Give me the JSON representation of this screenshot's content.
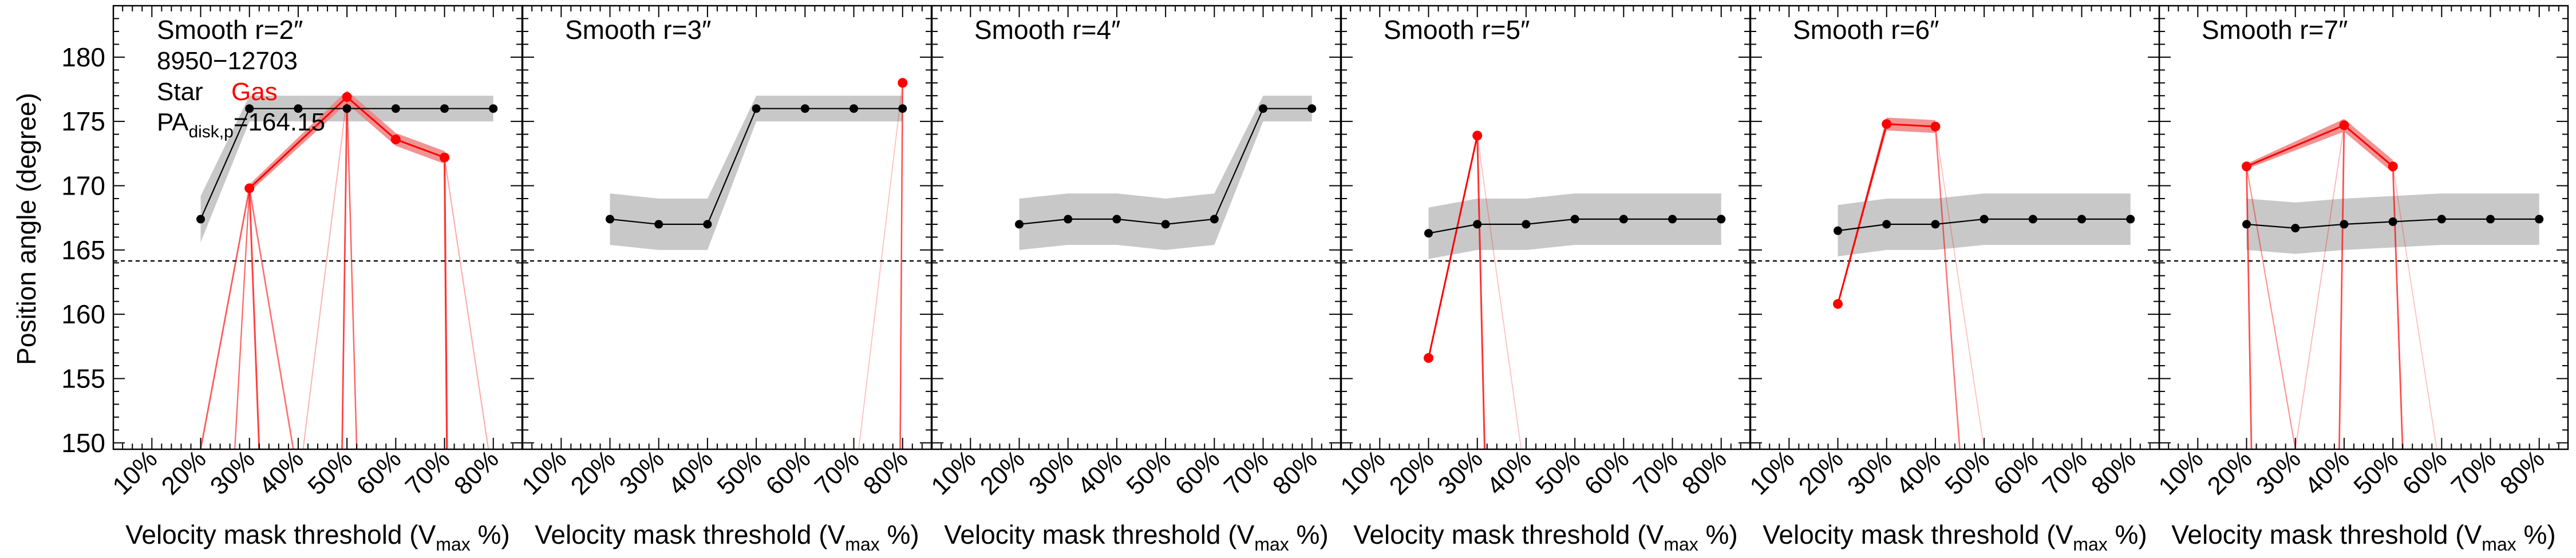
{
  "figure": {
    "ylabel": "Position angle (degree)",
    "xlabel_main": "Velocity mask threshold (V",
    "xlabel_sub": "max",
    "xlabel_tail": " %)",
    "colors": {
      "star": "#000000",
      "gas": "#ff0000",
      "star_band": "#c8c8c8",
      "gas_band": "#f08080"
    }
  },
  "annotations": {
    "id": "8950−12703",
    "star": "Star",
    "gas": "Gas",
    "pa_main": "PA",
    "pa_sub": "disk,p",
    "pa_value": "=164.15"
  },
  "chart_data": [
    {
      "type": "line",
      "title": "Smooth r=2″",
      "categories": [
        "10%",
        "20%",
        "30%",
        "40%",
        "50%",
        "60%",
        "70%",
        "80%"
      ],
      "ylim": [
        149.5,
        184.0
      ],
      "reference_line": 164.15,
      "series": [
        {
          "name": "Star",
          "x": [
            20,
            30,
            40,
            50,
            60,
            70,
            80
          ],
          "values": [
            167.4,
            176.0,
            176.0,
            176.0,
            176.0,
            176.0,
            176.0
          ],
          "band": [
            1.8,
            1.0,
            1.0,
            1.0,
            1.0,
            1.0,
            1.0
          ]
        },
        {
          "name": "Gas",
          "x": [
            30,
            50,
            60,
            70
          ],
          "values": [
            169.8,
            176.9,
            173.6,
            172.2
          ],
          "band": [
            0.3,
            0.5,
            0.5,
            0.5
          ],
          "offscale": [
            {
              "x": [
                20,
                30
              ],
              "y": [
                149.5,
                169.8
              ],
              "w": 2.2,
              "a": 0.65
            },
            {
              "x": [
                30,
                32
              ],
              "y": [
                169.8,
                149.5
              ],
              "w": 2.4,
              "a": 0.75
            },
            {
              "x": [
                27,
                30
              ],
              "y": [
                149.5,
                169.8
              ],
              "w": 1.8,
              "a": 0.6
            },
            {
              "x": [
                30,
                39
              ],
              "y": [
                169.8,
                149.5
              ],
              "w": 2.2,
              "a": 0.55
            },
            {
              "x": [
                41,
                50
              ],
              "y": [
                149.5,
                176.9
              ],
              "w": 1.6,
              "a": 0.3
            },
            {
              "x": [
                49,
                50
              ],
              "y": [
                149.5,
                176.9
              ],
              "w": 2.2,
              "a": 0.75
            },
            {
              "x": [
                50,
                52
              ],
              "y": [
                176.9,
                149.5
              ],
              "w": 2.0,
              "a": 0.6
            },
            {
              "x": [
                70,
                70.5
              ],
              "y": [
                172.2,
                149.5
              ],
              "w": 2.6,
              "a": 0.8
            },
            {
              "x": [
                70,
                79
              ],
              "y": [
                172.2,
                149.5
              ],
              "w": 1.6,
              "a": 0.35
            }
          ]
        }
      ]
    },
    {
      "type": "line",
      "title": "Smooth r=3″",
      "categories": [
        "10%",
        "20%",
        "30%",
        "40%",
        "50%",
        "60%",
        "70%",
        "80%"
      ],
      "ylim": [
        149.5,
        184.0
      ],
      "reference_line": 164.15,
      "series": [
        {
          "name": "Star",
          "x": [
            20,
            30,
            40,
            50,
            60,
            70,
            80
          ],
          "values": [
            167.4,
            167.0,
            167.0,
            176.0,
            176.0,
            176.0,
            176.0
          ],
          "band": [
            2.0,
            2.0,
            2.0,
            1.0,
            1.0,
            1.0,
            1.0
          ]
        },
        {
          "name": "Gas",
          "x": [
            80
          ],
          "values": [
            178.0
          ],
          "band": [
            0.0
          ],
          "offscale": [
            {
              "x": [
                71,
                80
              ],
              "y": [
                149.5,
                178.0
              ],
              "w": 1.4,
              "a": 0.25
            },
            {
              "x": [
                79.5,
                80
              ],
              "y": [
                149.5,
                178.0
              ],
              "w": 2.0,
              "a": 0.7
            }
          ]
        }
      ]
    },
    {
      "type": "line",
      "title": "Smooth r=4″",
      "categories": [
        "10%",
        "20%",
        "30%",
        "40%",
        "50%",
        "60%",
        "70%",
        "80%"
      ],
      "ylim": [
        149.5,
        184.0
      ],
      "reference_line": 164.15,
      "series": [
        {
          "name": "Star",
          "x": [
            20,
            30,
            40,
            50,
            60,
            70,
            80
          ],
          "values": [
            167.0,
            167.4,
            167.4,
            167.0,
            167.4,
            176.0,
            176.0
          ],
          "band": [
            2.0,
            2.0,
            2.0,
            2.0,
            2.0,
            1.0,
            1.0
          ]
        }
      ]
    },
    {
      "type": "line",
      "title": "Smooth r=5″",
      "categories": [
        "10%",
        "20%",
        "30%",
        "40%",
        "50%",
        "60%",
        "70%",
        "80%"
      ],
      "ylim": [
        149.5,
        184.0
      ],
      "reference_line": 164.15,
      "series": [
        {
          "name": "Star",
          "x": [
            20,
            30,
            40,
            50,
            60,
            70,
            80
          ],
          "values": [
            166.3,
            167.0,
            167.0,
            167.4,
            167.4,
            167.4,
            167.4
          ],
          "band": [
            2.0,
            2.0,
            2.0,
            2.0,
            2.0,
            2.0,
            2.0
          ]
        },
        {
          "name": "Gas",
          "x": [
            20,
            30
          ],
          "values": [
            156.6,
            173.9
          ],
          "band": [
            0.2,
            0.2
          ],
          "offscale": [
            {
              "x": [
                30,
                31.5
              ],
              "y": [
                173.9,
                149.5
              ],
              "w": 2.4,
              "a": 0.8
            },
            {
              "x": [
                30,
                39
              ],
              "y": [
                173.9,
                149.5
              ],
              "w": 1.4,
              "a": 0.25
            }
          ]
        }
      ]
    },
    {
      "type": "line",
      "title": "Smooth r=6″",
      "categories": [
        "10%",
        "20%",
        "30%",
        "40%",
        "50%",
        "60%",
        "70%",
        "80%"
      ],
      "ylim": [
        149.5,
        184.0
      ],
      "reference_line": 164.15,
      "series": [
        {
          "name": "Star",
          "x": [
            20,
            30,
            40,
            50,
            60,
            70,
            80
          ],
          "values": [
            166.5,
            167.0,
            167.0,
            167.4,
            167.4,
            167.4,
            167.4
          ],
          "band": [
            2.0,
            2.0,
            2.0,
            2.0,
            2.0,
            2.0,
            2.0
          ]
        },
        {
          "name": "Gas",
          "x": [
            20,
            30,
            40
          ],
          "values": [
            160.8,
            174.8,
            174.6
          ],
          "band": [
            0.2,
            0.5,
            0.5
          ],
          "offscale": [
            {
              "x": [
                40,
                45
              ],
              "y": [
                174.6,
                149.5
              ],
              "w": 2.0,
              "a": 0.55
            },
            {
              "x": [
                40,
                50
              ],
              "y": [
                174.6,
                149.5
              ],
              "w": 1.4,
              "a": 0.25
            }
          ]
        }
      ]
    },
    {
      "type": "line",
      "title": "Smooth r=7″",
      "categories": [
        "10%",
        "20%",
        "30%",
        "40%",
        "50%",
        "60%",
        "70%",
        "80%"
      ],
      "ylim": [
        149.5,
        184.0
      ],
      "reference_line": 164.15,
      "series": [
        {
          "name": "Star",
          "x": [
            20,
            30,
            40,
            50,
            60,
            70,
            80
          ],
          "values": [
            167.0,
            166.7,
            167.0,
            167.2,
            167.4,
            167.4,
            167.4
          ],
          "band": [
            2.0,
            2.0,
            2.0,
            2.0,
            2.0,
            2.0,
            2.0
          ]
        },
        {
          "name": "Gas",
          "x": [
            20,
            40,
            50
          ],
          "values": [
            171.5,
            174.7,
            171.5
          ],
          "band": [
            0.2,
            0.5,
            0.5
          ],
          "offscale": [
            {
              "x": [
                20,
                21
              ],
              "y": [
                171.5,
                149.5
              ],
              "w": 2.2,
              "a": 0.7
            },
            {
              "x": [
                20,
                30
              ],
              "y": [
                171.5,
                149.5
              ],
              "w": 1.6,
              "a": 0.45
            },
            {
              "x": [
                30,
                40
              ],
              "y": [
                149.5,
                174.7
              ],
              "w": 1.4,
              "a": 0.3
            },
            {
              "x": [
                39,
                40
              ],
              "y": [
                149.5,
                174.7
              ],
              "w": 2.2,
              "a": 0.7
            },
            {
              "x": [
                50,
                52
              ],
              "y": [
                171.5,
                149.5
              ],
              "w": 2.2,
              "a": 0.7
            },
            {
              "x": [
                50,
                59
              ],
              "y": [
                171.5,
                149.5
              ],
              "w": 1.4,
              "a": 0.25
            }
          ]
        }
      ]
    }
  ]
}
